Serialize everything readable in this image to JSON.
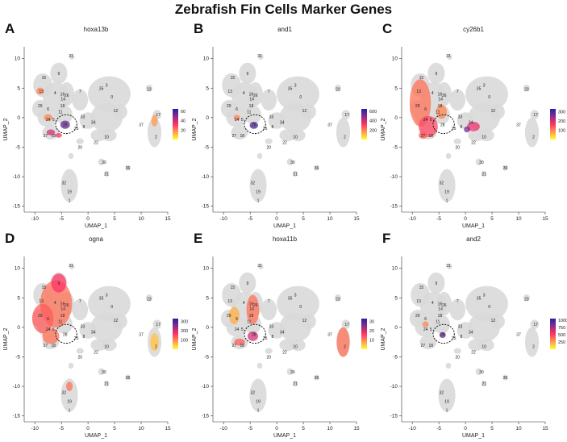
{
  "figure": {
    "title": "Zebrafish Fin Cells Marker Genes"
  },
  "colors": {
    "background_cells": "#d9d9d9",
    "scale_low": "#ffff33",
    "scale_mid": "#ff3366",
    "scale_high": "#2222aa",
    "outline": "#000000"
  },
  "chart_data": [
    {
      "type": "scatter",
      "panel_label": "A",
      "gene": "hoxa13b",
      "xlabel": "UMAP_1",
      "ylabel": "UMAP_2",
      "xlim": [
        -12,
        15
      ],
      "ylim": [
        -16,
        12
      ],
      "xticks": [
        -10,
        -5,
        0,
        5,
        10,
        15
      ],
      "yticks": [
        -15,
        -10,
        -5,
        0,
        5,
        10
      ],
      "colorbar_ticks": [
        20,
        40,
        60
      ],
      "colorbar_max": 65
    },
    {
      "type": "scatter",
      "panel_label": "B",
      "gene": "and1",
      "xlabel": "UMAP_1",
      "ylabel": "UMAP_2",
      "xlim": [
        -12,
        15
      ],
      "ylim": [
        -16,
        12
      ],
      "xticks": [
        -10,
        -5,
        0,
        5,
        10,
        15
      ],
      "yticks": [
        -15,
        -10,
        -5,
        0,
        5,
        10
      ],
      "colorbar_ticks": [
        200,
        400,
        600
      ],
      "colorbar_max": 650
    },
    {
      "type": "scatter",
      "panel_label": "C",
      "gene": "cy26b1",
      "xlabel": "UMAP_1",
      "ylabel": "UMAP_2",
      "xlim": [
        -12,
        15
      ],
      "ylim": [
        -16,
        12
      ],
      "xticks": [
        -10,
        -5,
        0,
        5,
        10,
        15
      ],
      "yticks": [
        -15,
        -10,
        -5,
        0,
        5,
        10
      ],
      "colorbar_ticks": [
        100,
        200,
        300
      ],
      "colorbar_max": 330
    },
    {
      "type": "scatter",
      "panel_label": "D",
      "gene": "ogna",
      "xlabel": "UMAP_1",
      "ylabel": "UMAP_2",
      "xlim": [
        -12,
        15
      ],
      "ylim": [
        -16,
        12
      ],
      "xticks": [
        -10,
        -5,
        0,
        5,
        10,
        15
      ],
      "yticks": [
        -15,
        -10,
        -5,
        0,
        5,
        10
      ],
      "colorbar_ticks": [
        100,
        200,
        300
      ],
      "colorbar_max": 330
    },
    {
      "type": "scatter",
      "panel_label": "E",
      "gene": "hoxa11b",
      "xlabel": "UMAP_1",
      "ylabel": "UMAP_2",
      "xlim": [
        -12,
        15
      ],
      "ylim": [
        -16,
        12
      ],
      "xticks": [
        -10,
        -5,
        0,
        5,
        10,
        15
      ],
      "yticks": [
        -15,
        -10,
        -5,
        0,
        5,
        10
      ],
      "colorbar_ticks": [
        10,
        20,
        30
      ],
      "colorbar_max": 33
    },
    {
      "type": "scatter",
      "panel_label": "F",
      "gene": "and2",
      "xlabel": "UMAP_1",
      "ylabel": "UMAP_2",
      "xlim": [
        -12,
        15
      ],
      "ylim": [
        -16,
        12
      ],
      "xticks": [
        -10,
        -5,
        0,
        5,
        10,
        15
      ],
      "yticks": [
        -15,
        -10,
        -5,
        0,
        5,
        10
      ],
      "colorbar_ticks": [
        250,
        500,
        750,
        1000
      ],
      "colorbar_max": 1050
    }
  ],
  "umap_blobs": [
    {
      "x": -8.5,
      "y": 5.5,
      "rx": 1.8,
      "ry": 2.0
    },
    {
      "x": -5.5,
      "y": 7.5,
      "rx": 1.6,
      "ry": 1.8
    },
    {
      "x": -6.0,
      "y": 3.5,
      "rx": 2.5,
      "ry": 2.5
    },
    {
      "x": -9.0,
      "y": 1.5,
      "rx": 1.5,
      "ry": 1.5
    },
    {
      "x": -7.5,
      "y": 0.0,
      "rx": 2.0,
      "ry": 1.6
    },
    {
      "x": -4.5,
      "y": 0.5,
      "rx": 1.6,
      "ry": 1.6
    },
    {
      "x": -7.0,
      "y": -2.5,
      "rx": 1.6,
      "ry": 1.2
    },
    {
      "x": -4.0,
      "y": 4.0,
      "rx": 1.4,
      "ry": 2.0
    },
    {
      "x": -1.5,
      "y": 3.0,
      "rx": 1.5,
      "ry": 1.8
    },
    {
      "x": 4.0,
      "y": 4.0,
      "rx": 4.0,
      "ry": 3.0
    },
    {
      "x": 3.5,
      "y": 0.0,
      "rx": 3.0,
      "ry": 2.5
    },
    {
      "x": 0.0,
      "y": -0.5,
      "rx": 1.6,
      "ry": 1.4
    },
    {
      "x": 6.0,
      "y": 1.0,
      "rx": 1.4,
      "ry": 1.3
    },
    {
      "x": 2.0,
      "y": -3.0,
      "rx": 1.5,
      "ry": 1.0
    },
    {
      "x": 4.0,
      "y": -3.0,
      "rx": 1.4,
      "ry": 1.0
    },
    {
      "x": 12.5,
      "y": -2.5,
      "rx": 1.3,
      "ry": 2.5
    },
    {
      "x": 13.0,
      "y": 0.5,
      "rx": 0.8,
      "ry": 0.8
    },
    {
      "x": 11.5,
      "y": 5.0,
      "rx": 0.6,
      "ry": 0.6
    },
    {
      "x": -3.5,
      "y": -11.5,
      "rx": 1.6,
      "ry": 2.8
    },
    {
      "x": -3.0,
      "y": 10.3,
      "rx": 0.5,
      "ry": 0.5
    },
    {
      "x": -1.5,
      "y": -4.0,
      "rx": 0.7,
      "ry": 0.5
    },
    {
      "x": -3.2,
      "y": -6.5,
      "rx": 0.5,
      "ry": 0.5
    },
    {
      "x": 2.5,
      "y": -7.5,
      "rx": 0.6,
      "ry": 0.6
    },
    {
      "x": 3.5,
      "y": -9.5,
      "rx": 0.5,
      "ry": 0.5
    },
    {
      "x": 7.5,
      "y": -8.5,
      "rx": 0.5,
      "ry": 0.5
    }
  ],
  "cluster_labels": [
    {
      "t": "31",
      "x": -3.2,
      "y": 10.5
    },
    {
      "t": "9",
      "x": -5.5,
      "y": 7.5
    },
    {
      "t": "15",
      "x": -8.3,
      "y": 6.8
    },
    {
      "t": "4",
      "x": -6.2,
      "y": 4.2
    },
    {
      "t": "16",
      "x": -4.8,
      "y": 4.0
    },
    {
      "t": "13",
      "x": -8.8,
      "y": 4.5
    },
    {
      "t": "14",
      "x": -4.7,
      "y": 3.2
    },
    {
      "t": "26",
      "x": -4.0,
      "y": 3.8
    },
    {
      "t": "29",
      "x": -9.0,
      "y": 2.0
    },
    {
      "t": "6",
      "x": -7.5,
      "y": 1.5
    },
    {
      "t": "18",
      "x": -4.8,
      "y": 2.0
    },
    {
      "t": "11",
      "x": -5.2,
      "y": 1.0
    },
    {
      "t": "24",
      "x": -7.5,
      "y": -0.3
    },
    {
      "t": "5",
      "x": -6.5,
      "y": -0.3
    },
    {
      "t": "28",
      "x": -4.3,
      "y": -1.2
    },
    {
      "t": "27",
      "x": -8.0,
      "y": -3.0
    },
    {
      "t": "18",
      "x": -6.5,
      "y": -3.0
    },
    {
      "t": "7",
      "x": -1.5,
      "y": 4.5
    },
    {
      "t": "35",
      "x": 2.5,
      "y": 5.0
    },
    {
      "t": "3",
      "x": 3.5,
      "y": 5.5
    },
    {
      "t": "0",
      "x": 4.5,
      "y": 3.5
    },
    {
      "t": "33",
      "x": -1.0,
      "y": 0.2
    },
    {
      "t": "34",
      "x": 1.0,
      "y": -0.8
    },
    {
      "t": "12",
      "x": 5.2,
      "y": 1.2
    },
    {
      "t": "8",
      "x": -0.8,
      "y": -1.5
    },
    {
      "t": "25",
      "x": -2.2,
      "y": -1.8
    },
    {
      "t": "23",
      "x": 11.5,
      "y": 4.8
    },
    {
      "t": "17",
      "x": 13.2,
      "y": 0.5
    },
    {
      "t": "37",
      "x": 10.0,
      "y": -1.2
    },
    {
      "t": "2",
      "x": 12.8,
      "y": -3.2
    },
    {
      "t": "10",
      "x": 3.5,
      "y": -3.2
    },
    {
      "t": "22",
      "x": 1.5,
      "y": -4.2
    },
    {
      "t": "20",
      "x": -1.5,
      "y": -5.0
    },
    {
      "t": "30",
      "x": 3.0,
      "y": -7.5
    },
    {
      "t": "21",
      "x": 3.5,
      "y": -9.5
    },
    {
      "t": "36",
      "x": 7.5,
      "y": -8.5
    },
    {
      "t": "32",
      "x": -4.5,
      "y": -11.0
    },
    {
      "t": "19",
      "x": -3.5,
      "y": -12.5
    },
    {
      "t": "1",
      "x": -3.5,
      "y": -14.0
    }
  ],
  "highlights": [
    [
      {
        "x": -4.3,
        "y": -1.2,
        "rx": 0.9,
        "ry": 0.7,
        "v": 0.85
      },
      {
        "x": -7.0,
        "y": -2.5,
        "rx": 0.8,
        "ry": 0.5,
        "v": 0.6
      },
      {
        "x": -5.5,
        "y": -3.0,
        "rx": 0.6,
        "ry": 0.4,
        "v": 0.5
      },
      {
        "x": -9.0,
        "y": 4.5,
        "rx": 0.7,
        "ry": 0.6,
        "v": 0.3
      },
      {
        "x": -7.5,
        "y": 0.0,
        "rx": 0.8,
        "ry": 0.6,
        "v": 0.3
      },
      {
        "x": 12.5,
        "y": -0.5,
        "rx": 0.6,
        "ry": 1.0,
        "v": 0.25
      }
    ],
    [
      {
        "x": -4.3,
        "y": -1.3,
        "rx": 0.8,
        "ry": 0.6,
        "v": 0.9
      },
      {
        "x": -7.5,
        "y": 0.0,
        "rx": 0.6,
        "ry": 0.5,
        "v": 0.3
      }
    ],
    [
      {
        "x": -8.5,
        "y": 2.5,
        "rx": 2.0,
        "ry": 4.0,
        "v": 0.35
      },
      {
        "x": -7.0,
        "y": -1.5,
        "rx": 1.8,
        "ry": 1.8,
        "v": 0.45
      },
      {
        "x": -4.5,
        "y": 1.0,
        "rx": 1.0,
        "ry": 1.2,
        "v": 0.3
      },
      {
        "x": 1.5,
        "y": -1.5,
        "rx": 1.2,
        "ry": 0.8,
        "v": 0.55
      },
      {
        "x": 0.3,
        "y": -2.0,
        "rx": 0.6,
        "ry": 0.5,
        "v": 0.8
      },
      {
        "x": -8.0,
        "y": -3.0,
        "rx": 0.8,
        "ry": 0.6,
        "v": 0.4
      }
    ],
    [
      {
        "x": -6.0,
        "y": 4.0,
        "rx": 3.0,
        "ry": 4.0,
        "v": 0.35
      },
      {
        "x": -8.5,
        "y": 1.5,
        "rx": 2.0,
        "ry": 2.5,
        "v": 0.4
      },
      {
        "x": -5.5,
        "y": 7.5,
        "rx": 1.4,
        "ry": 1.6,
        "v": 0.5
      },
      {
        "x": -7.0,
        "y": -1.5,
        "rx": 1.6,
        "ry": 1.3,
        "v": 0.35
      },
      {
        "x": -3.5,
        "y": -10.0,
        "rx": 0.6,
        "ry": 0.8,
        "v": 0.35
      },
      {
        "x": 12.5,
        "y": -2.5,
        "rx": 0.8,
        "ry": 1.5,
        "v": 0.15
      }
    ],
    [
      {
        "x": -4.5,
        "y": 3.0,
        "rx": 1.2,
        "ry": 2.5,
        "v": 0.35
      },
      {
        "x": -4.5,
        "y": -1.5,
        "rx": 1.0,
        "ry": 0.8,
        "v": 0.6
      },
      {
        "x": -7.0,
        "y": -2.5,
        "rx": 1.0,
        "ry": 0.6,
        "v": 0.4
      },
      {
        "x": 12.5,
        "y": -2.5,
        "rx": 1.2,
        "ry": 2.5,
        "v": 0.35
      },
      {
        "x": -8.0,
        "y": 2.0,
        "rx": 1.0,
        "ry": 1.5,
        "v": 0.2
      }
    ],
    [
      {
        "x": -4.3,
        "y": -1.3,
        "rx": 0.6,
        "ry": 0.5,
        "v": 0.85
      },
      {
        "x": -7.5,
        "y": 0.5,
        "rx": 0.6,
        "ry": 0.5,
        "v": 0.3
      }
    ]
  ],
  "dashed_region": {
    "x": -4.1,
    "y": -1.1,
    "rx": 2.0,
    "ry": 1.6
  }
}
